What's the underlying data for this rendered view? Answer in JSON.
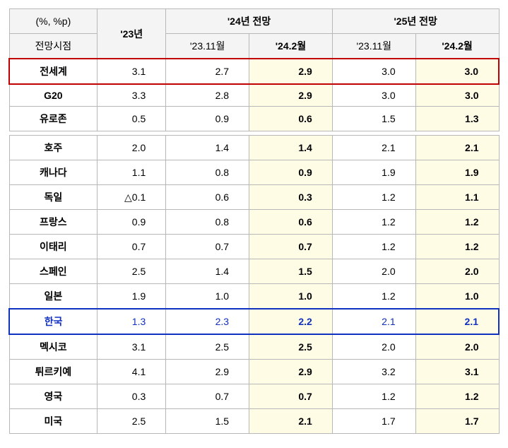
{
  "header": {
    "unit": "(%, %p)",
    "col23": "'23년",
    "col24": "'24년 전망",
    "col25": "'25년 전망",
    "sub_label": "전망시점",
    "sub_23_11": "'23.11월",
    "sub_24_2": "'24.2월"
  },
  "groups": [
    {
      "rows": [
        {
          "emph": "red",
          "label": "전세계",
          "y23": "3.1",
          "y24a": "2.7",
          "y24b": "2.9",
          "y25a": "3.0",
          "y25b": "3.0"
        },
        {
          "emph": "",
          "label": "G20",
          "y23": "3.3",
          "y24a": "2.8",
          "y24b": "2.9",
          "y25a": "3.0",
          "y25b": "3.0"
        },
        {
          "emph": "",
          "label": "유로존",
          "y23": "0.5",
          "y24a": "0.9",
          "y24b": "0.6",
          "y25a": "1.5",
          "y25b": "1.3"
        }
      ]
    },
    {
      "rows": [
        {
          "emph": "",
          "label": "호주",
          "y23": "2.0",
          "y24a": "1.4",
          "y24b": "1.4",
          "y25a": "2.1",
          "y25b": "2.1"
        },
        {
          "emph": "",
          "label": "캐나다",
          "y23": "1.1",
          "y24a": "0.8",
          "y24b": "0.9",
          "y25a": "1.9",
          "y25b": "1.9"
        },
        {
          "emph": "",
          "label": "독일",
          "y23": "△0.1",
          "y24a": "0.6",
          "y24b": "0.3",
          "y25a": "1.2",
          "y25b": "1.1"
        },
        {
          "emph": "",
          "label": "프랑스",
          "y23": "0.9",
          "y24a": "0.8",
          "y24b": "0.6",
          "y25a": "1.2",
          "y25b": "1.2"
        },
        {
          "emph": "",
          "label": "이태리",
          "y23": "0.7",
          "y24a": "0.7",
          "y24b": "0.7",
          "y25a": "1.2",
          "y25b": "1.2"
        },
        {
          "emph": "",
          "label": "스페인",
          "y23": "2.5",
          "y24a": "1.4",
          "y24b": "1.5",
          "y25a": "2.0",
          "y25b": "2.0"
        },
        {
          "emph": "",
          "label": "일본",
          "y23": "1.9",
          "y24a": "1.0",
          "y24b": "1.0",
          "y25a": "1.2",
          "y25b": "1.0"
        },
        {
          "emph": "blue",
          "label": "한국",
          "y23": "1.3",
          "y24a": "2.3",
          "y24b": "2.2",
          "y25a": "2.1",
          "y25b": "2.1"
        },
        {
          "emph": "",
          "label": "멕시코",
          "y23": "3.1",
          "y24a": "2.5",
          "y24b": "2.5",
          "y25a": "2.0",
          "y25b": "2.0"
        },
        {
          "emph": "",
          "label": "튀르키예",
          "y23": "4.1",
          "y24a": "2.9",
          "y24b": "2.9",
          "y25a": "3.2",
          "y25b": "3.1"
        },
        {
          "emph": "",
          "label": "영국",
          "y23": "0.3",
          "y24a": "0.7",
          "y24b": "0.7",
          "y25a": "1.2",
          "y25b": "1.2"
        },
        {
          "emph": "",
          "label": "미국",
          "y23": "2.5",
          "y24a": "1.5",
          "y24b": "2.1",
          "y25a": "1.7",
          "y25b": "1.7"
        }
      ]
    }
  ],
  "style": {
    "header_bg": "#f4f4f4",
    "highlight_bg": "#fffce6",
    "border_color": "#b8b8b8",
    "emph_red": "#c00000",
    "emph_blue": "#1030c0",
    "font_size": 14
  }
}
